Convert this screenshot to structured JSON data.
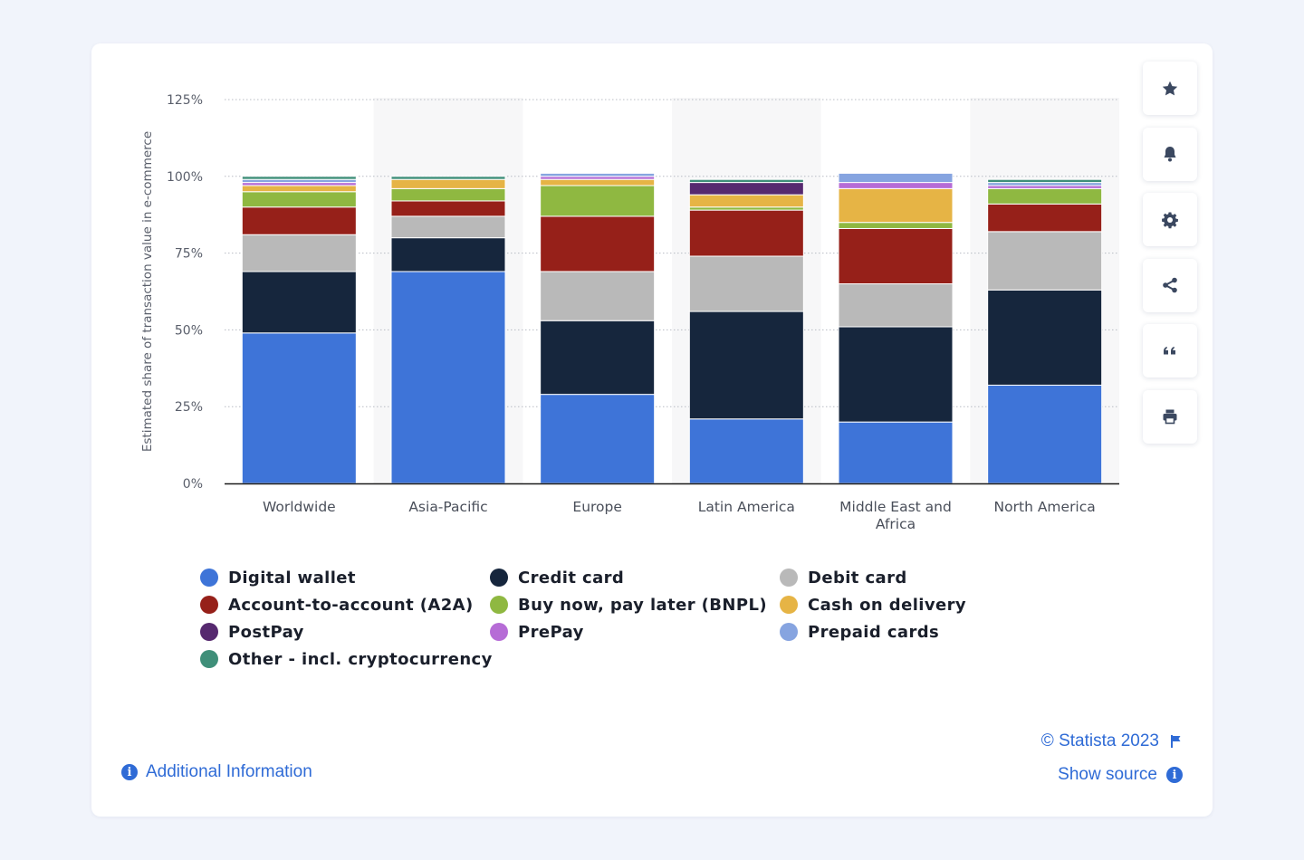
{
  "chart_data": {
    "type": "bar",
    "stacked": true,
    "ylabel": "Estimated share of transaction value in e-commerce",
    "xlabel": "",
    "ylim": [
      0,
      125
    ],
    "yticks": [
      0,
      25,
      50,
      75,
      100,
      125
    ],
    "ytick_labels": [
      "0%",
      "25%",
      "50%",
      "75%",
      "100%",
      "125%"
    ],
    "grid": true,
    "legend_position": "bottom",
    "categories": [
      "Worldwide",
      "Asia-Pacific",
      "Europe",
      "Latin America",
      "Middle East and Africa",
      "North America"
    ],
    "series": [
      {
        "name": "Digital wallet",
        "color": "#3e74d8",
        "values": [
          49,
          69,
          29,
          21,
          20,
          32
        ]
      },
      {
        "name": "Credit card",
        "color": "#16263d",
        "values": [
          20,
          11,
          24,
          35,
          31,
          31
        ]
      },
      {
        "name": "Debit card",
        "color": "#b9b9b9",
        "values": [
          12,
          7,
          16,
          18,
          14,
          19
        ]
      },
      {
        "name": "Account-to-account (A2A)",
        "color": "#962019",
        "values": [
          9,
          5,
          18,
          15,
          18,
          9
        ]
      },
      {
        "name": "Buy now, pay later (BNPL)",
        "color": "#8fb841",
        "values": [
          5,
          4,
          10,
          1,
          2,
          5
        ]
      },
      {
        "name": "Cash on delivery",
        "color": "#e6b445",
        "values": [
          2,
          3,
          2,
          4,
          11,
          0
        ]
      },
      {
        "name": "PostPay",
        "color": "#56296f",
        "values": [
          0,
          0,
          0,
          4,
          0,
          0
        ]
      },
      {
        "name": "PrePay",
        "color": "#b66cd6",
        "values": [
          1,
          0,
          1,
          0,
          2,
          1
        ]
      },
      {
        "name": "Prepaid cards",
        "color": "#86a4e0",
        "values": [
          1,
          0,
          1,
          0,
          3,
          1
        ]
      },
      {
        "name": "Other - incl. cryptocurrency",
        "color": "#3f8f79",
        "values": [
          1,
          1,
          0,
          1,
          0,
          1
        ]
      }
    ]
  },
  "footer": {
    "additional_info": "Additional Information",
    "copyright": "© Statista 2023",
    "show_source": "Show source"
  },
  "toolbar": {
    "icons": [
      "star-icon",
      "bell-icon",
      "gear-icon",
      "share-icon",
      "quote-icon",
      "print-icon"
    ]
  }
}
